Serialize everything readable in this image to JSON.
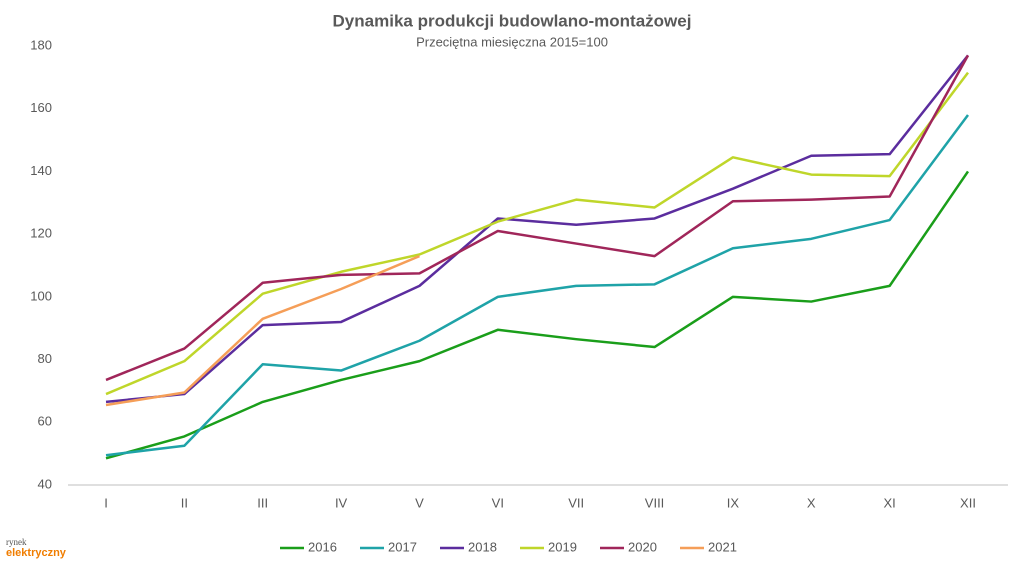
{
  "chart_data": {
    "type": "line",
    "title": "Dynamika produkcji budowlano-montażowej",
    "subtitle": "Przeciętna miesięczna 2015=100",
    "categories": [
      "I",
      "II",
      "III",
      "IV",
      "V",
      "VI",
      "VII",
      "VIII",
      "IX",
      "X",
      "XI",
      "XII"
    ],
    "series": [
      {
        "name": "2016",
        "color": "#1a9e1a",
        "values": [
          48.5,
          55.5,
          66.5,
          73.5,
          79.5,
          89.5,
          86.5,
          84,
          100,
          98.5,
          103.5,
          140
        ]
      },
      {
        "name": "2017",
        "color": "#1fa3a8",
        "values": [
          49.5,
          52.5,
          78.5,
          76.5,
          86,
          100,
          103.5,
          104,
          115.5,
          118.5,
          124.5,
          158
        ]
      },
      {
        "name": "2018",
        "color": "#5b2d9e",
        "values": [
          66.5,
          69,
          91,
          92,
          103.5,
          125,
          123,
          125,
          134.5,
          145,
          145.5,
          177
        ]
      },
      {
        "name": "2019",
        "color": "#bfd62a",
        "values": [
          69,
          79.5,
          101,
          108,
          113.5,
          124,
          131,
          128.5,
          144.5,
          139,
          138.5,
          171.5
        ]
      },
      {
        "name": "2020",
        "color": "#a0265a",
        "values": [
          73.5,
          83.5,
          104.5,
          107,
          107.5,
          121,
          117,
          113,
          130.5,
          131,
          132,
          177
        ]
      },
      {
        "name": "2021",
        "color": "#f59e58",
        "values": [
          65.5,
          69.5,
          93,
          102.5,
          113,
          null,
          null,
          null,
          null,
          null,
          null,
          null
        ]
      }
    ],
    "ylim": [
      40,
      180
    ],
    "yticks": [
      40,
      60,
      80,
      100,
      120,
      140,
      160,
      180
    ],
    "legend": "bottom"
  },
  "logo": [
    "rynek",
    "elektryczny"
  ]
}
